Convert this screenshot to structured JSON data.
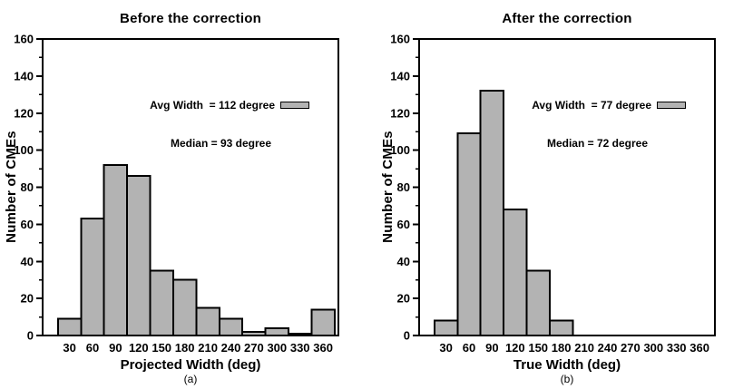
{
  "figure": {
    "background": "#ffffff",
    "text_color": "#000000"
  },
  "chart_data": [
    {
      "type": "bar",
      "title": "Before the correction",
      "xlabel": "Projected Width (deg)",
      "sublabel": "(a)",
      "ylabel": "Number of CMEs",
      "categories": [
        30,
        60,
        90,
        120,
        150,
        180,
        210,
        240,
        270,
        300,
        330,
        360
      ],
      "values": [
        9,
        63,
        92,
        86,
        35,
        30,
        15,
        9,
        2,
        4,
        1,
        14
      ],
      "bin_width": 30,
      "ylim": [
        0,
        160
      ],
      "ytick_step": 20,
      "ytick_minor_step": 10,
      "grid": false,
      "bar_color": "#b3b3b3",
      "bar_border_color": "#000000",
      "legend": {
        "position": "upper right inside plot",
        "avg_label": "Avg Width  = 112 degree",
        "median_label": "Median = 93 degree",
        "swatch_color": "#b3b3b3"
      }
    },
    {
      "type": "bar",
      "title": "After the correction",
      "xlabel": "True Width (deg)",
      "sublabel": "(b)",
      "ylabel": "Number of CMEs",
      "categories": [
        30,
        60,
        90,
        120,
        150,
        180,
        210,
        240,
        270,
        300,
        330,
        360
      ],
      "values": [
        8,
        109,
        132,
        68,
        35,
        8,
        0,
        0,
        0,
        0,
        0,
        0
      ],
      "bin_width": 30,
      "ylim": [
        0,
        160
      ],
      "ytick_step": 20,
      "ytick_minor_step": 10,
      "grid": false,
      "bar_color": "#b3b3b3",
      "bar_border_color": "#000000",
      "legend": {
        "position": "upper right inside plot",
        "avg_label": "Avg Width  = 77 degree",
        "median_label": "Median = 72 degree",
        "swatch_color": "#b3b3b3"
      }
    }
  ]
}
